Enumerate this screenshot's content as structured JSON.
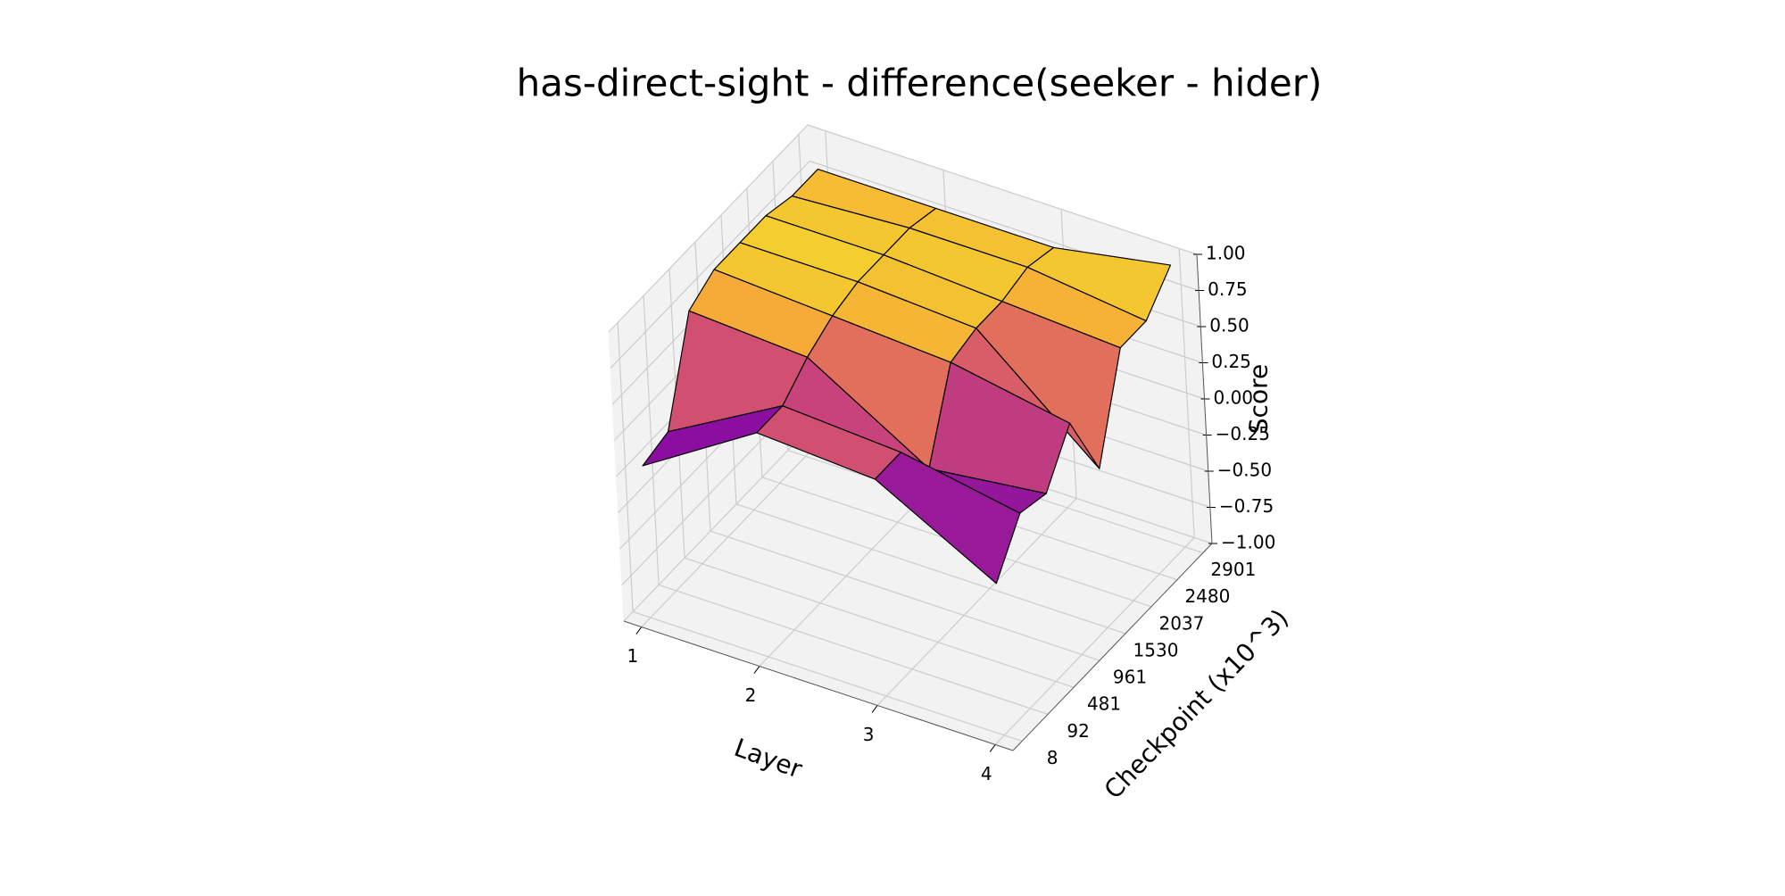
{
  "chart_data": {
    "type": "surface",
    "title": "has-direct-sight - difference(seeker - hider)",
    "xlabel": "Layer",
    "ylabel": "Checkpoint (x10^3)",
    "zlabel": "Score",
    "x": [
      1,
      2,
      3,
      4
    ],
    "categories": [
      "8",
      "92",
      "481",
      "961",
      "1530",
      "2037",
      "2480",
      "2901"
    ],
    "values": [
      [
        0.05,
        0.1,
        0.75,
        0.85,
        0.85,
        0.85,
        0.8,
        0.8
      ],
      [
        0.55,
        0.55,
        0.7,
        0.8,
        0.85,
        0.85,
        0.85,
        0.8
      ],
      [
        0.5,
        0.5,
        0.2,
        0.75,
        0.8,
        0.8,
        0.85,
        0.8
      ],
      [
        0.05,
        0.35,
        0.3,
        0.6,
        0.1,
        0.75,
        0.75,
        0.95
      ]
    ],
    "xlim": [
      0.85,
      4.15
    ],
    "xticks": [
      1,
      2,
      3,
      4
    ],
    "zlim": [
      -1,
      1
    ],
    "zticks": [
      {
        "value": -1,
        "label": "−1.00"
      },
      {
        "value": -0.75,
        "label": "−0.75"
      },
      {
        "value": -0.5,
        "label": "−0.50"
      },
      {
        "value": -0.25,
        "label": "−0.25"
      },
      {
        "value": 0,
        "label": "0.00"
      },
      {
        "value": 0.25,
        "label": "0.25"
      },
      {
        "value": 0.5,
        "label": "0.50"
      },
      {
        "value": 0.75,
        "label": "0.75"
      },
      {
        "value": 1,
        "label": "1.00"
      }
    ],
    "colormap": "plasma",
    "edgecolor": "#000000",
    "grid": true
  }
}
